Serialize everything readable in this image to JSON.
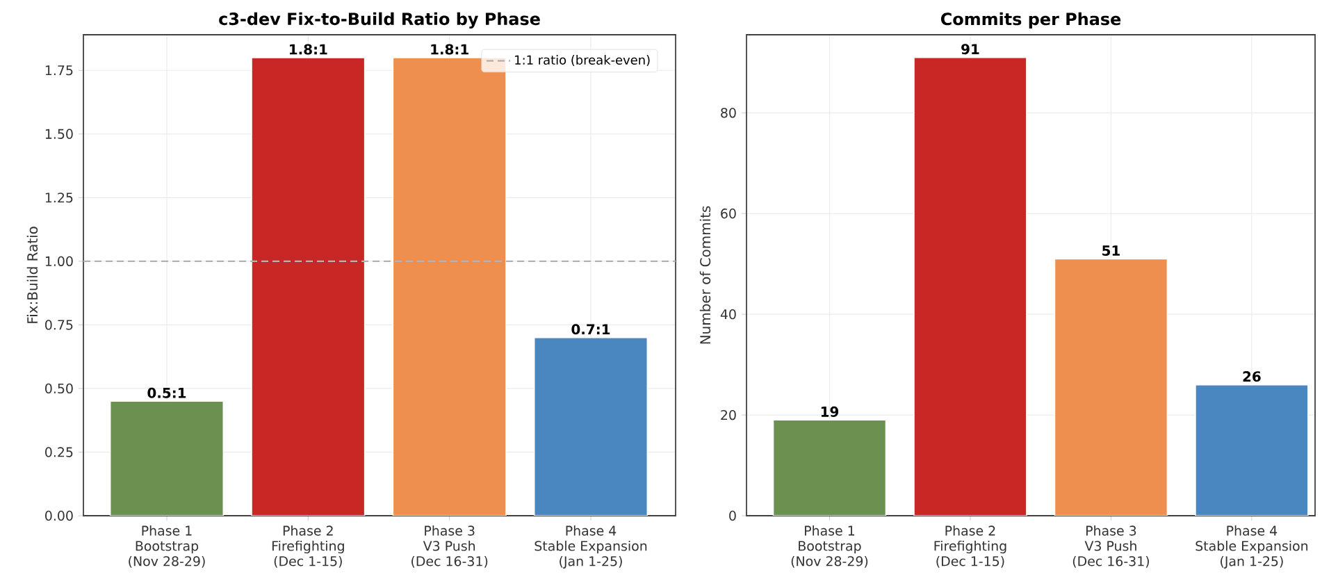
{
  "chart_data": [
    {
      "type": "bar",
      "title": "c3-dev Fix-to-Build Ratio by Phase",
      "ylabel": "Fix:Build Ratio",
      "categories": [
        "Phase 1\nBootstrap\n(Nov 28-29)",
        "Phase 2\nFirefighting\n(Dec 1-15)",
        "Phase 3\nV3 Push\n(Dec 16-31)",
        "Phase 4\nStable Expansion\n(Jan 1-25)"
      ],
      "values": [
        0.45,
        1.8,
        1.8,
        0.7
      ],
      "colors": [
        "#6b9150",
        "#c92626",
        "#ef8f4f",
        "#4a87c0"
      ],
      "value_labels": [
        "0.5:1",
        "1.8:1",
        "1.8:1",
        "0.7:1"
      ],
      "ylim": [
        0,
        1.89
      ],
      "yticks": [
        {
          "value": 0,
          "label": "0.00"
        },
        {
          "value": 0.25,
          "label": "0.25"
        },
        {
          "value": 0.5,
          "label": "0.50"
        },
        {
          "value": 0.75,
          "label": "0.75"
        },
        {
          "value": 1,
          "label": "1.00"
        },
        {
          "value": 1.25,
          "label": "1.25"
        },
        {
          "value": 1.5,
          "label": "1.50"
        },
        {
          "value": 1.75,
          "label": "1.75"
        }
      ],
      "ref_lines": [
        {
          "axis": "y",
          "value": 1,
          "label": "1:1 ratio (break-even)",
          "color": "#b3b3b3",
          "line_style": "dashed"
        }
      ],
      "legend": "top right",
      "grid": true
    },
    {
      "type": "bar",
      "title": "Commits per Phase",
      "ylabel": "Number of Commits",
      "categories": [
        "Phase 1\nBootstrap\n(Nov 28-29)",
        "Phase 2\nFirefighting\n(Dec 1-15)",
        "Phase 3\nV3 Push\n(Dec 16-31)",
        "Phase 4\nStable Expansion\n(Jan 1-25)"
      ],
      "values": [
        19,
        91,
        51,
        26
      ],
      "colors": [
        "#6b9150",
        "#c92626",
        "#ef8f4f",
        "#4a87c0"
      ],
      "data_labels": true,
      "ylim": [
        0,
        95.5
      ],
      "yticks": [
        0,
        20,
        40,
        60,
        80
      ],
      "grid": true
    }
  ]
}
